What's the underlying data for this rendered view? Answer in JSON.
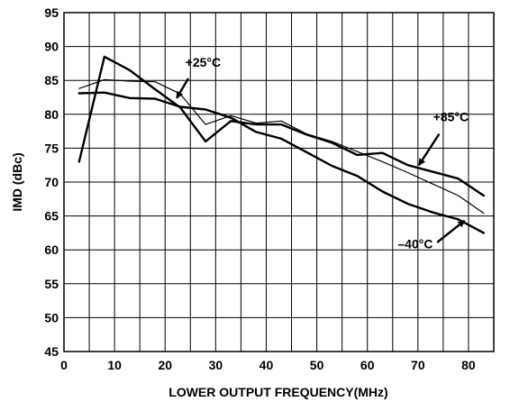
{
  "chart_data": {
    "type": "line",
    "title": "",
    "xlabel": "LOWER OUTPUT FREQUENCY(MHz)",
    "ylabel": "IMD (dBc)",
    "xlim": [
      0,
      85
    ],
    "ylim": [
      45,
      95
    ],
    "xticks": [
      0,
      10,
      20,
      30,
      40,
      50,
      60,
      70,
      80
    ],
    "yticks": [
      45,
      50,
      55,
      60,
      65,
      70,
      75,
      80,
      85,
      90,
      95
    ],
    "grid": true,
    "series": [
      {
        "name": "+25°C",
        "stroke": "#000000",
        "width": 2.4,
        "x": [
          3,
          8,
          13,
          18,
          23,
          28,
          33,
          38,
          43,
          48,
          53,
          58,
          63,
          68,
          73,
          78,
          83
        ],
        "y": [
          73,
          88.5,
          86.5,
          83.7,
          81,
          76,
          79,
          78.5,
          78.5,
          77,
          75.8,
          74,
          74.3,
          72.5,
          71.5,
          70.5,
          68
        ]
      },
      {
        "name": "+85°C",
        "stroke": "#000000",
        "width": 1.2,
        "x": [
          3,
          8,
          13,
          18,
          23,
          28,
          33,
          38,
          43,
          48,
          53,
          58,
          63,
          68,
          73,
          78,
          83
        ],
        "y": [
          83.8,
          85.1,
          84.9,
          84.8,
          83,
          78.5,
          79.8,
          78.7,
          79,
          77.1,
          76,
          74.5,
          73,
          71.4,
          69.7,
          68,
          65.4
        ]
      },
      {
        "name": "–40°C",
        "stroke": "#000000",
        "width": 2.4,
        "x": [
          3,
          8,
          13,
          18,
          23,
          28,
          33,
          38,
          43,
          48,
          53,
          58,
          63,
          68,
          73,
          78,
          83
        ],
        "y": [
          83.1,
          83.2,
          82.4,
          82.3,
          81.1,
          80.7,
          79.5,
          77.4,
          76.4,
          74.4,
          72.4,
          70.9,
          68.6,
          66.8,
          65.5,
          64.5,
          62.5
        ]
      }
    ],
    "annotations": [
      {
        "text": "+25°C",
        "x": 24,
        "y": 87
      },
      {
        "text": "+85°C",
        "x": 73,
        "y": 79
      },
      {
        "text": "–40°C",
        "x": 66,
        "y": 60.2
      }
    ]
  }
}
